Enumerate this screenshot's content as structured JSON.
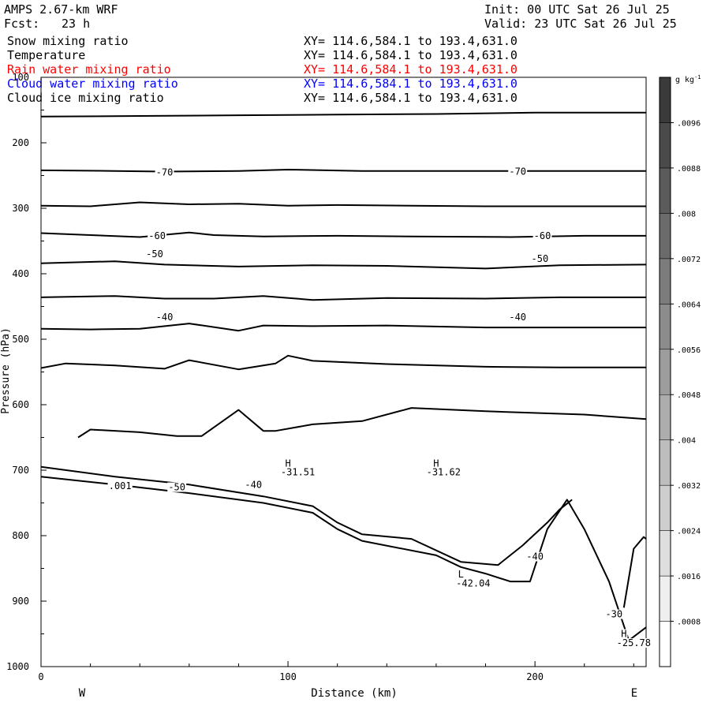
{
  "header": {
    "model": "AMPS 2.67-km WRF",
    "forecast_label": "Fcst:",
    "forecast_hours": "23 h",
    "init": "Init: 00 UTC Sat 26 Jul 25",
    "valid": "Valid: 23 UTC Sat 26 Jul 25"
  },
  "fields": [
    {
      "name": "Snow mixing ratio",
      "xy": "XY= 114.6,584.1 to 193.4,631.0",
      "color": "#000000"
    },
    {
      "name": "Temperature",
      "xy": "XY= 114.6,584.1 to 193.4,631.0",
      "color": "#000000"
    },
    {
      "name": "Rain water mixing ratio",
      "xy": "XY= 114.6,584.1 to 193.4,631.0",
      "color": "#ff0000"
    },
    {
      "name": "Cloud water mixing ratio",
      "xy": "XY= 114.6,584.1 to 193.4,631.0",
      "color": "#0000ff"
    },
    {
      "name": "Cloud ice mixing ratio",
      "xy": "XY= 114.6,584.1 to 193.4,631.0",
      "color": "#000000"
    }
  ],
  "chart_data": {
    "type": "line",
    "xlabel": "Distance (km)",
    "ylabel": "Pressure (hPa)",
    "xlim": [
      0,
      245
    ],
    "ylim": [
      1000,
      100
    ],
    "x_ticks": [
      0,
      100,
      200
    ],
    "y_ticks": [
      100,
      200,
      300,
      400,
      500,
      600,
      700,
      800,
      900,
      1000
    ],
    "direction_left": "W",
    "direction_right": "E",
    "colorbar": {
      "unit": "g kg",
      "unit_exp": "-1",
      "ticks": [
        ".0008",
        ".0016",
        ".0024",
        ".0032",
        ".004",
        ".0048",
        ".0056",
        ".0064",
        ".0072",
        ".008",
        ".0088",
        ".0096"
      ],
      "range": [
        0,
        0.0104
      ]
    },
    "contours": [
      {
        "level": "-80",
        "x": [
          0,
          40,
          80,
          120,
          160,
          200,
          245
        ],
        "y": [
          160,
          159,
          158,
          157,
          156,
          154,
          154
        ]
      },
      {
        "level": "-70",
        "x": [
          0,
          30,
          50,
          80,
          100,
          130,
          160,
          200,
          245
        ],
        "y": [
          242,
          243,
          244,
          243,
          241,
          243,
          243,
          243,
          243
        ]
      },
      {
        "level": "-65",
        "x": [
          0,
          20,
          40,
          60,
          80,
          100,
          120,
          150,
          180,
          210,
          245
        ],
        "y": [
          296,
          297,
          291,
          294,
          293,
          296,
          295,
          296,
          297,
          297,
          297
        ]
      },
      {
        "level": "-60",
        "x": [
          0,
          20,
          40,
          60,
          70,
          90,
          120,
          150,
          190,
          220,
          245
        ],
        "y": [
          338,
          341,
          344,
          337,
          341,
          343,
          342,
          343,
          344,
          342,
          342
        ]
      },
      {
        "level": "-55",
        "x": [
          0,
          30,
          50,
          80,
          110,
          140,
          180,
          210,
          245
        ],
        "y": [
          384,
          381,
          386,
          389,
          387,
          388,
          392,
          387,
          386
        ]
      },
      {
        "level": "-50",
        "x": [
          0,
          30,
          50,
          70,
          90,
          110,
          140,
          180,
          210,
          245
        ],
        "y": [
          436,
          434,
          438,
          438,
          434,
          440,
          437,
          438,
          436,
          436
        ]
      },
      {
        "level": "-45",
        "x": [
          0,
          20,
          40,
          60,
          80,
          90,
          110,
          140,
          180,
          210,
          245
        ],
        "y": [
          484,
          485,
          484,
          476,
          487,
          479,
          480,
          479,
          482,
          482,
          482
        ]
      },
      {
        "level": "-40",
        "x": [
          0,
          10,
          30,
          50,
          60,
          80,
          95,
          100,
          110,
          140,
          180,
          210,
          245
        ],
        "y": [
          544,
          537,
          540,
          545,
          532,
          546,
          537,
          525,
          533,
          538,
          542,
          543,
          543
        ]
      },
      {
        "level": "-35",
        "x": [
          15,
          20,
          40,
          55,
          65,
          80,
          90,
          95,
          110,
          130,
          150,
          180,
          220,
          245
        ],
        "y": [
          650,
          638,
          642,
          648,
          648,
          608,
          640,
          640,
          630,
          625,
          605,
          610,
          615,
          622
        ]
      },
      {
        "level": "-30",
        "x": [
          236,
          240,
          244,
          245
        ],
        "y": [
          910,
          820,
          802,
          805
        ]
      },
      {
        "level": "terrain",
        "x": [
          0,
          30,
          60,
          90,
          110,
          120,
          130,
          160,
          170,
          180,
          190,
          198,
          205,
          213,
          220,
          230,
          238,
          245
        ],
        "y": [
          710,
          722,
          735,
          750,
          765,
          790,
          808,
          830,
          848,
          858,
          870,
          870,
          790,
          745,
          790,
          870,
          960,
          940
        ]
      },
      {
        "level": "inner",
        "x": [
          0,
          30,
          60,
          90,
          110,
          120,
          130,
          150,
          170,
          185,
          195,
          205,
          210,
          215
        ],
        "y": [
          695,
          710,
          722,
          740,
          755,
          780,
          798,
          805,
          840,
          845,
          815,
          780,
          760,
          745
        ]
      }
    ],
    "annotations": [
      {
        "text": "-70",
        "x": 50,
        "p": 245
      },
      {
        "text": "-70",
        "x": 193,
        "p": 244
      },
      {
        "text": "-60",
        "x": 47,
        "p": 342
      },
      {
        "text": "-60",
        "x": 203,
        "p": 342
      },
      {
        "text": "-50",
        "x": 46,
        "p": 370
      },
      {
        "text": "-50",
        "x": 202,
        "p": 377
      },
      {
        "text": "-40",
        "x": 50,
        "p": 466
      },
      {
        "text": "-40",
        "x": 193,
        "p": 466
      },
      {
        "text": "H",
        "x": 100,
        "p": 690
      },
      {
        "text": "-31.51",
        "x": 104,
        "p": 703
      },
      {
        "text": "H",
        "x": 160,
        "p": 690
      },
      {
        "text": "-31.62",
        "x": 163,
        "p": 703
      },
      {
        "text": ".001",
        "x": 32,
        "p": 724
      },
      {
        "text": "-50",
        "x": 55,
        "p": 726
      },
      {
        "text": "-40",
        "x": 86,
        "p": 722
      },
      {
        "text": "-40",
        "x": 200,
        "p": 832
      },
      {
        "text": "L",
        "x": 170,
        "p": 859
      },
      {
        "text": "-42.04",
        "x": 175,
        "p": 873
      },
      {
        "text": "-30",
        "x": 232,
        "p": 920
      },
      {
        "text": "H",
        "x": 236,
        "p": 950
      },
      {
        "text": "-25.78",
        "x": 240,
        "p": 964
      }
    ]
  }
}
